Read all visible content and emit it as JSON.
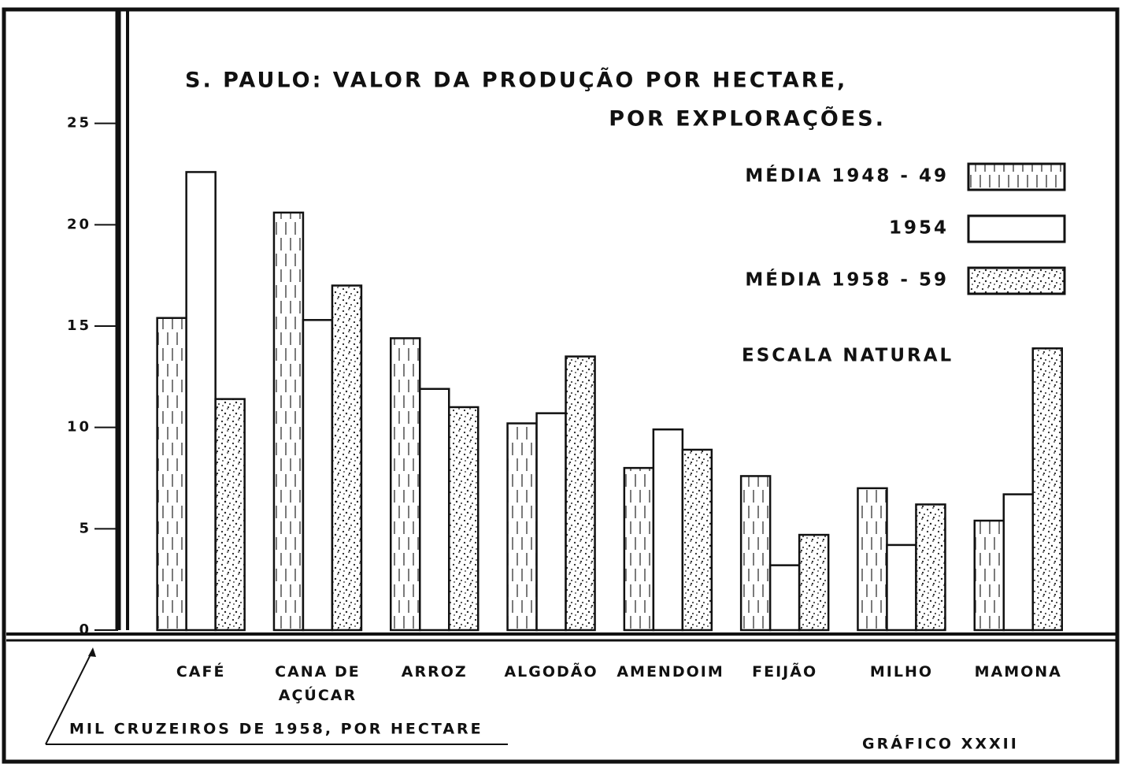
{
  "chart_data": {
    "type": "bar",
    "title": "S. PAULO: VALOR DA PRODUÇÃO POR HECTARE,",
    "subtitle": "POR EXPLORAÇÕES.",
    "annotation": "ESCALA NATURAL",
    "y_label": "MIL CRUZEIROS DE 1958, POR HECTARE",
    "footer": "GRÁFICO XXXII",
    "categories": [
      "CAFÉ",
      "CANA DE AÇÚCAR",
      "ARROZ",
      "ALGODÃO",
      "AMENDOIM",
      "FEIJÃO",
      "MILHO",
      "MAMONA"
    ],
    "series": [
      {
        "name": "MÉDIA 1948 - 49",
        "color": "#ffffff",
        "pattern": "dashes",
        "values": [
          15.4,
          20.6,
          14.4,
          10.2,
          8.0,
          7.6,
          7.0,
          5.4
        ]
      },
      {
        "name": "1954",
        "color": "#ffffff",
        "pattern": "none",
        "values": [
          22.6,
          15.3,
          11.9,
          10.7,
          9.9,
          3.2,
          4.2,
          6.7
        ]
      },
      {
        "name": "MÉDIA 1958 - 59",
        "color": "#ffffff",
        "pattern": "stipple",
        "values": [
          11.4,
          17.0,
          11.0,
          13.5,
          8.9,
          4.7,
          6.2,
          13.9
        ]
      }
    ],
    "ylim": [
      0,
      30
    ],
    "yticks": [
      0,
      5,
      10,
      15,
      20,
      25
    ],
    "grid": false,
    "legend": "upper right"
  }
}
